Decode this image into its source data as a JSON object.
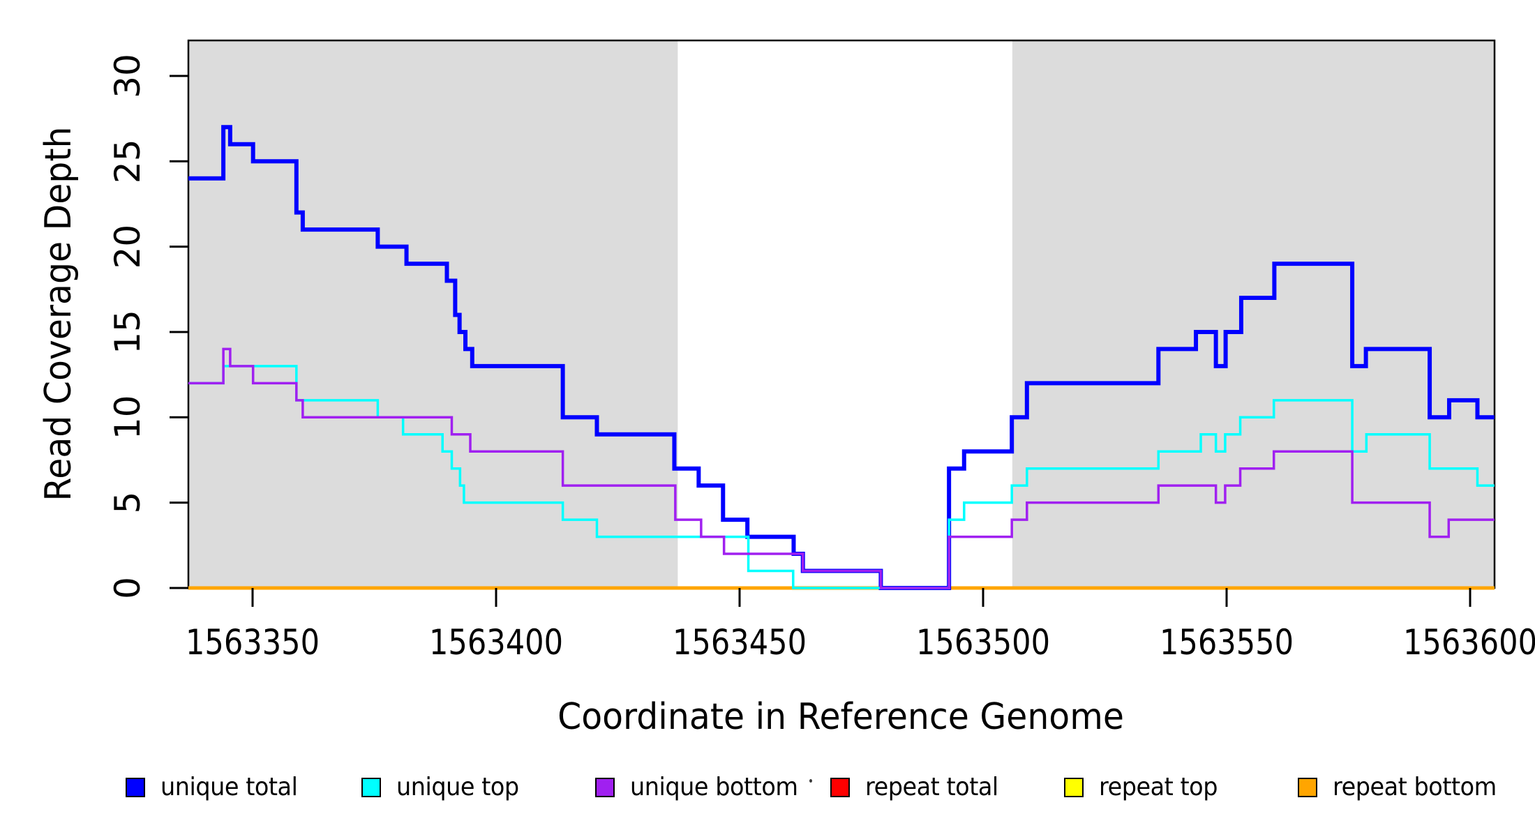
{
  "figure": {
    "background": "#FFFFFF",
    "plot_background": "#FFFFFF",
    "band_color": "#DCDCDC",
    "border_color": "#000000"
  },
  "chart_data": {
    "type": "line",
    "subtype": "step-coverage",
    "title": "",
    "xlabel": "Coordinate in Reference Genome",
    "ylabel": "Read Coverage Depth",
    "xlim": [
      1563336.8,
      1563605.0
    ],
    "ylim": [
      0,
      32.1
    ],
    "grid": false,
    "legend_position": "bottom",
    "x_ticks": [
      1563350,
      1563400,
      1563450,
      1563500,
      1563550,
      1563600
    ],
    "x_tick_labels": [
      "1563350",
      "1563400",
      "1563450",
      "1563500",
      "1563550",
      "1563600"
    ],
    "y_ticks": [
      0,
      5,
      10,
      15,
      20,
      25,
      30
    ],
    "y_tick_labels": [
      "0",
      "5",
      "10",
      "15",
      "20",
      "25",
      "30"
    ],
    "shaded_regions": [
      {
        "x0": 1563336.8,
        "x1": 1563437.3
      },
      {
        "x0": 1563506.0,
        "x1": 1563605.0
      }
    ],
    "series": [
      {
        "name": "repeat total",
        "color": "#FF0000",
        "width": 5,
        "points": [
          [
            1563336.8,
            0
          ]
        ]
      },
      {
        "name": "repeat top",
        "color": "#FFFF00",
        "width": 5,
        "points": [
          [
            1563336.8,
            0
          ]
        ]
      },
      {
        "name": "repeat bottom",
        "color": "#FFA500",
        "width": 5,
        "points": [
          [
            1563336.8,
            0
          ]
        ]
      },
      {
        "name": "unique total",
        "color": "#0000FF",
        "width": 6,
        "points": [
          [
            1563336.8,
            24
          ],
          [
            1563344.0,
            27
          ],
          [
            1563345.4,
            26
          ],
          [
            1563350.1,
            25
          ],
          [
            1563359.0,
            22
          ],
          [
            1563360.3,
            21
          ],
          [
            1563375.7,
            20
          ],
          [
            1563381.6,
            19
          ],
          [
            1563389.9,
            18
          ],
          [
            1563391.6,
            16
          ],
          [
            1563392.5,
            15
          ],
          [
            1563393.7,
            14
          ],
          [
            1563395.1,
            13
          ],
          [
            1563413.7,
            10
          ],
          [
            1563420.7,
            9
          ],
          [
            1563436.6,
            7
          ],
          [
            1563441.6,
            6
          ],
          [
            1563446.6,
            4
          ],
          [
            1563451.6,
            3
          ],
          [
            1563461.1,
            2
          ],
          [
            1563463.0,
            1
          ],
          [
            1563479.0,
            0
          ],
          [
            1563493.0,
            7
          ],
          [
            1563496.1,
            8
          ],
          [
            1563505.9,
            10
          ],
          [
            1563509.0,
            12
          ],
          [
            1563536.0,
            14
          ],
          [
            1563543.7,
            15
          ],
          [
            1563547.8,
            13
          ],
          [
            1563549.8,
            15
          ],
          [
            1563553.0,
            17
          ],
          [
            1563559.8,
            19
          ],
          [
            1563575.8,
            13
          ],
          [
            1563578.6,
            14
          ],
          [
            1563591.7,
            10
          ],
          [
            1563595.7,
            11
          ],
          [
            1563601.5,
            10
          ]
        ]
      },
      {
        "name": "unique top",
        "color": "#00FFFF",
        "width": 3.5,
        "points": [
          [
            1563336.8,
            12
          ],
          [
            1563344.0,
            13
          ],
          [
            1563359.0,
            11
          ],
          [
            1563375.7,
            10
          ],
          [
            1563380.9,
            9
          ],
          [
            1563389.0,
            8
          ],
          [
            1563390.9,
            7
          ],
          [
            1563392.6,
            6
          ],
          [
            1563393.4,
            5
          ],
          [
            1563413.7,
            4
          ],
          [
            1563420.7,
            3
          ],
          [
            1563451.8,
            1
          ],
          [
            1563461.0,
            0
          ],
          [
            1563493.0,
            4
          ],
          [
            1563496.1,
            5
          ],
          [
            1563505.9,
            6
          ],
          [
            1563509.0,
            7
          ],
          [
            1563536.0,
            8
          ],
          [
            1563544.7,
            9
          ],
          [
            1563547.8,
            8
          ],
          [
            1563549.7,
            9
          ],
          [
            1563552.8,
            10
          ],
          [
            1563559.7,
            11
          ],
          [
            1563575.8,
            8
          ],
          [
            1563578.7,
            9
          ],
          [
            1563591.7,
            7
          ],
          [
            1563601.5,
            6
          ]
        ]
      },
      {
        "name": "unique bottom",
        "color": "#A020F0",
        "width": 3.5,
        "points": [
          [
            1563336.8,
            12
          ],
          [
            1563344.0,
            14
          ],
          [
            1563345.4,
            13
          ],
          [
            1563350.1,
            12
          ],
          [
            1563359.0,
            11
          ],
          [
            1563360.3,
            10
          ],
          [
            1563390.9,
            9
          ],
          [
            1563394.7,
            8
          ],
          [
            1563413.7,
            6
          ],
          [
            1563436.8,
            4
          ],
          [
            1563442.1,
            3
          ],
          [
            1563446.8,
            2
          ],
          [
            1563463.0,
            1
          ],
          [
            1563479.0,
            0
          ],
          [
            1563493.0,
            3
          ],
          [
            1563505.9,
            4
          ],
          [
            1563509.0,
            5
          ],
          [
            1563536.0,
            6
          ],
          [
            1563547.8,
            5
          ],
          [
            1563549.7,
            6
          ],
          [
            1563552.8,
            7
          ],
          [
            1563559.7,
            8
          ],
          [
            1563575.8,
            5
          ],
          [
            1563591.7,
            3
          ],
          [
            1563595.6,
            4
          ]
        ]
      }
    ],
    "legend": [
      {
        "label": "unique total",
        "color": "#0000FF"
      },
      {
        "label": "unique top",
        "color": "#00FFFF"
      },
      {
        "label": "unique bottom",
        "color": "#A020F0"
      },
      {
        "label": "repeat total",
        "color": "#FF0000"
      },
      {
        "label": "repeat top",
        "color": "#FFFF00"
      },
      {
        "label": "repeat bottom",
        "color": "#FFA500"
      }
    ]
  }
}
